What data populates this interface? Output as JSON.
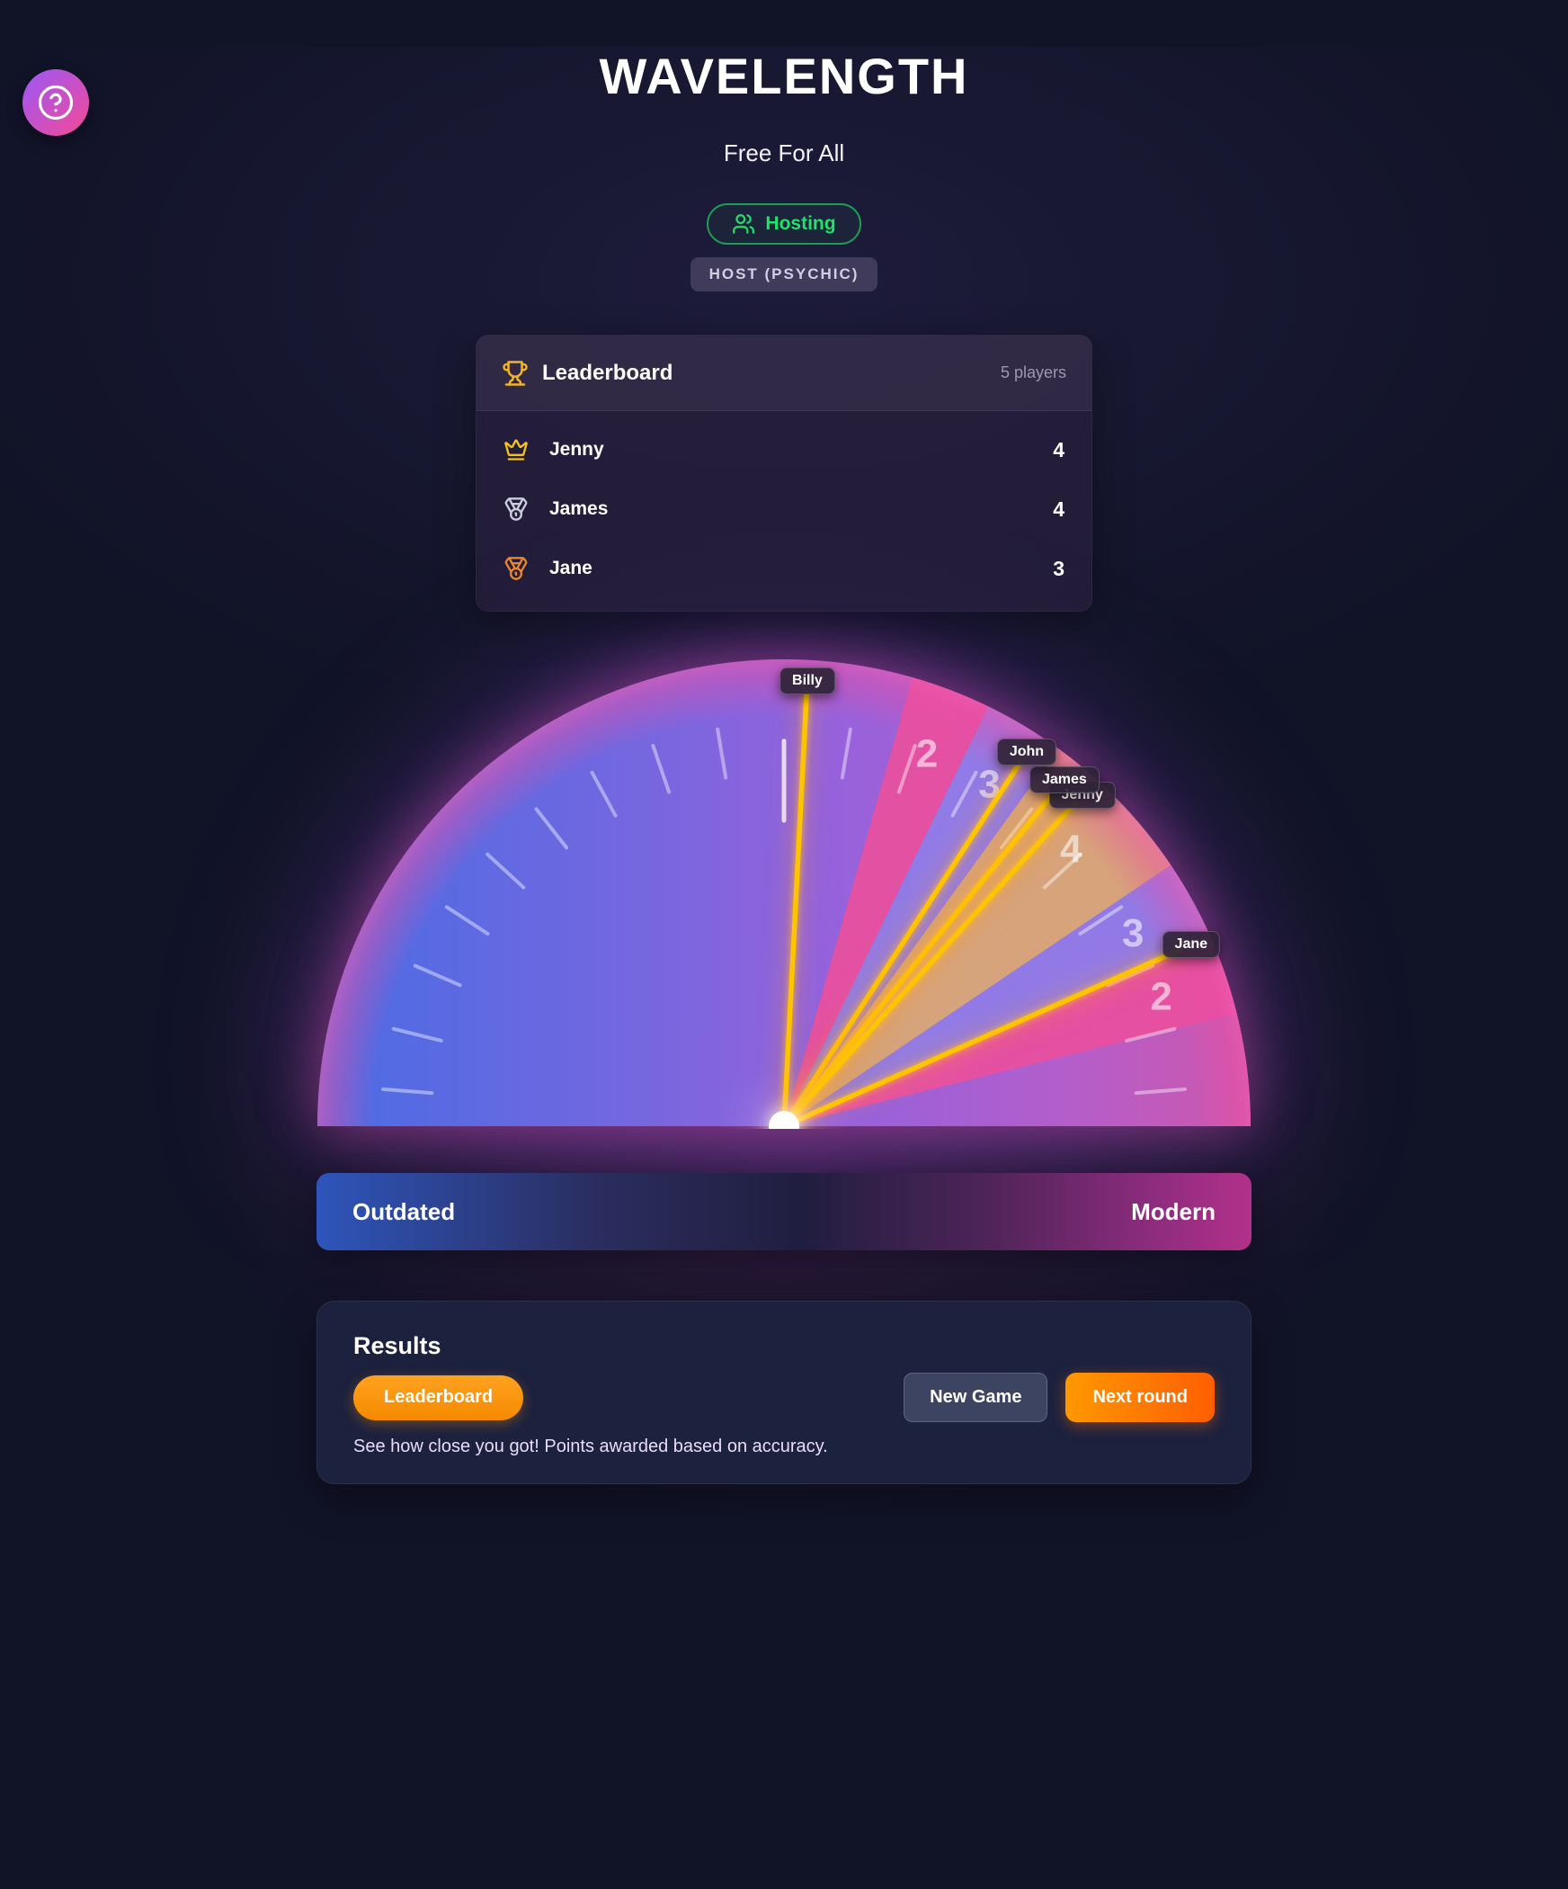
{
  "app": {
    "title": "WAVELENGTH",
    "subtitle": "Free For All"
  },
  "status": {
    "hosting_label": "Hosting",
    "role_label": "HOST (PSYCHIC)"
  },
  "help_button": {
    "icon": "question-mark-circle-icon"
  },
  "leaderboard": {
    "title": "Leaderboard",
    "players_count": "5 players",
    "icon": "trophy-icon",
    "rows": [
      {
        "name": "Jenny",
        "score": "4",
        "rank_icon": "crown-icon",
        "rank_color": "c-gold"
      },
      {
        "name": "James",
        "score": "4",
        "rank_icon": "medal-silver-icon",
        "rank_color": "c-silver"
      },
      {
        "name": "Jane",
        "score": "3",
        "rank_icon": "medal-bronze-icon",
        "rank_color": "c-bronze"
      }
    ]
  },
  "dial": {
    "left_label": "Outdated",
    "right_label": "Modern",
    "center_tick_deg": 90,
    "wedges": [
      {
        "points": "2",
        "start_deg": 64,
        "end_deg": 74,
        "color": "#e8509f"
      },
      {
        "points": "3",
        "start_deg": 54,
        "end_deg": 64,
        "color": "#8f7ce8"
      },
      {
        "points": "4",
        "start_deg": 34,
        "end_deg": 54,
        "color": "#d9a876"
      },
      {
        "points": "3",
        "start_deg": 24,
        "end_deg": 34,
        "color": "#8f7ce8"
      },
      {
        "points": "2",
        "start_deg": 14,
        "end_deg": 24,
        "color": "#e8509f"
      }
    ],
    "needles": [
      {
        "name": "Billy",
        "angle_deg": 87
      },
      {
        "name": "John",
        "angle_deg": 57
      },
      {
        "name": "James",
        "angle_deg": 51
      },
      {
        "name": "Jenny",
        "angle_deg": 48
      },
      {
        "name": "Jane",
        "angle_deg": 24
      }
    ],
    "colors": {
      "needle": "#ffc400",
      "base_left": "#4a6ce4",
      "base_mid": "#9562dc",
      "base_right": "#cd58ad",
      "rim": "#ec4da4"
    }
  },
  "results": {
    "title": "Results",
    "leaderboard_button": "Leaderboard",
    "new_game_button": "New Game",
    "next_round_button": "Next round",
    "caption": "See how close you got! Points awarded based on accuracy."
  },
  "theme": {
    "background": "#111327",
    "hosting_green": "#1ee26a",
    "accent_orange": "#ff9800",
    "bar_left": "#2e55bb",
    "bar_right": "#b23189"
  }
}
